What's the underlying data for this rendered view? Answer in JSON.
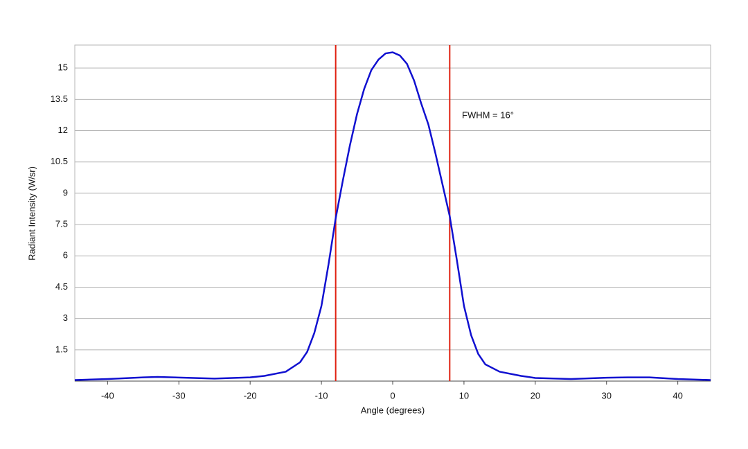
{
  "chart_data": {
    "type": "line",
    "xlabel": "Angle (degrees)",
    "ylabel": "Radiant Intensity (W/sr)",
    "annotation": "FWHM = 16°",
    "x": [
      -44.6,
      -40,
      -35,
      -33,
      -30,
      -25,
      -20,
      -18,
      -15,
      -13,
      -12,
      -11,
      -10,
      -9,
      -8,
      -7,
      -6,
      -5,
      -4,
      -3,
      -2,
      -1,
      0,
      1,
      2,
      3,
      4,
      5,
      6,
      7,
      8,
      9,
      10,
      11,
      12,
      13,
      15,
      18,
      20,
      25,
      30,
      33,
      36,
      40,
      44.6
    ],
    "series": [
      {
        "color": "#1010d0",
        "values": [
          0.05,
          0.1,
          0.18,
          0.2,
          0.17,
          0.12,
          0.18,
          0.25,
          0.45,
          0.9,
          1.4,
          2.3,
          3.6,
          5.6,
          7.8,
          9.6,
          11.3,
          12.8,
          14.0,
          14.9,
          15.4,
          15.7,
          15.75,
          15.6,
          15.2,
          14.4,
          13.3,
          12.3,
          10.9,
          9.4,
          7.9,
          5.8,
          3.6,
          2.2,
          1.3,
          0.8,
          0.45,
          0.25,
          0.15,
          0.1,
          0.16,
          0.18,
          0.18,
          0.1,
          0.05
        ]
      }
    ],
    "vlines": [
      {
        "x": -8,
        "color": "#e02010"
      },
      {
        "x": 8,
        "color": "#e02010"
      }
    ],
    "xlim": [
      -44.6,
      44.6
    ],
    "xticks": [
      -40,
      -30,
      -20,
      -10,
      0,
      10,
      20,
      30,
      40
    ],
    "ylim": [
      0,
      16.1
    ],
    "yticks": [
      1.5,
      3,
      4.5,
      6,
      7.5,
      9,
      10.5,
      12,
      13.5,
      15
    ],
    "grid": true
  }
}
